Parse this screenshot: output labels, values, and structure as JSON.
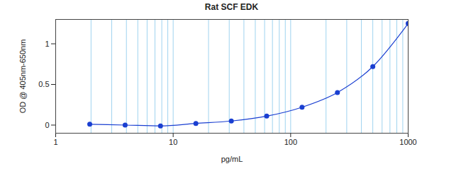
{
  "chart_data": {
    "type": "scatter",
    "title": "Rat SCF EDK",
    "x_label": "pg/mL",
    "y_label": "OD @ 405nm-650nm",
    "x": [
      1.95,
      3.9,
      7.8,
      15.6,
      31.25,
      62.5,
      125,
      250,
      500,
      1000
    ],
    "values": [
      0.01,
      0.0,
      -0.01,
      0.02,
      0.05,
      0.11,
      0.22,
      0.4,
      0.72,
      1.25
    ],
    "color": "#1a3fd1",
    "marker": "circle",
    "line_style": "solid",
    "log": "x",
    "grid": "x",
    "xlim": [
      1,
      1000
    ],
    "xticks": [
      1,
      10,
      100,
      1000
    ],
    "ylim": [
      -0.1,
      1.3
    ],
    "yticks": [
      0,
      0.5,
      1
    ]
  }
}
